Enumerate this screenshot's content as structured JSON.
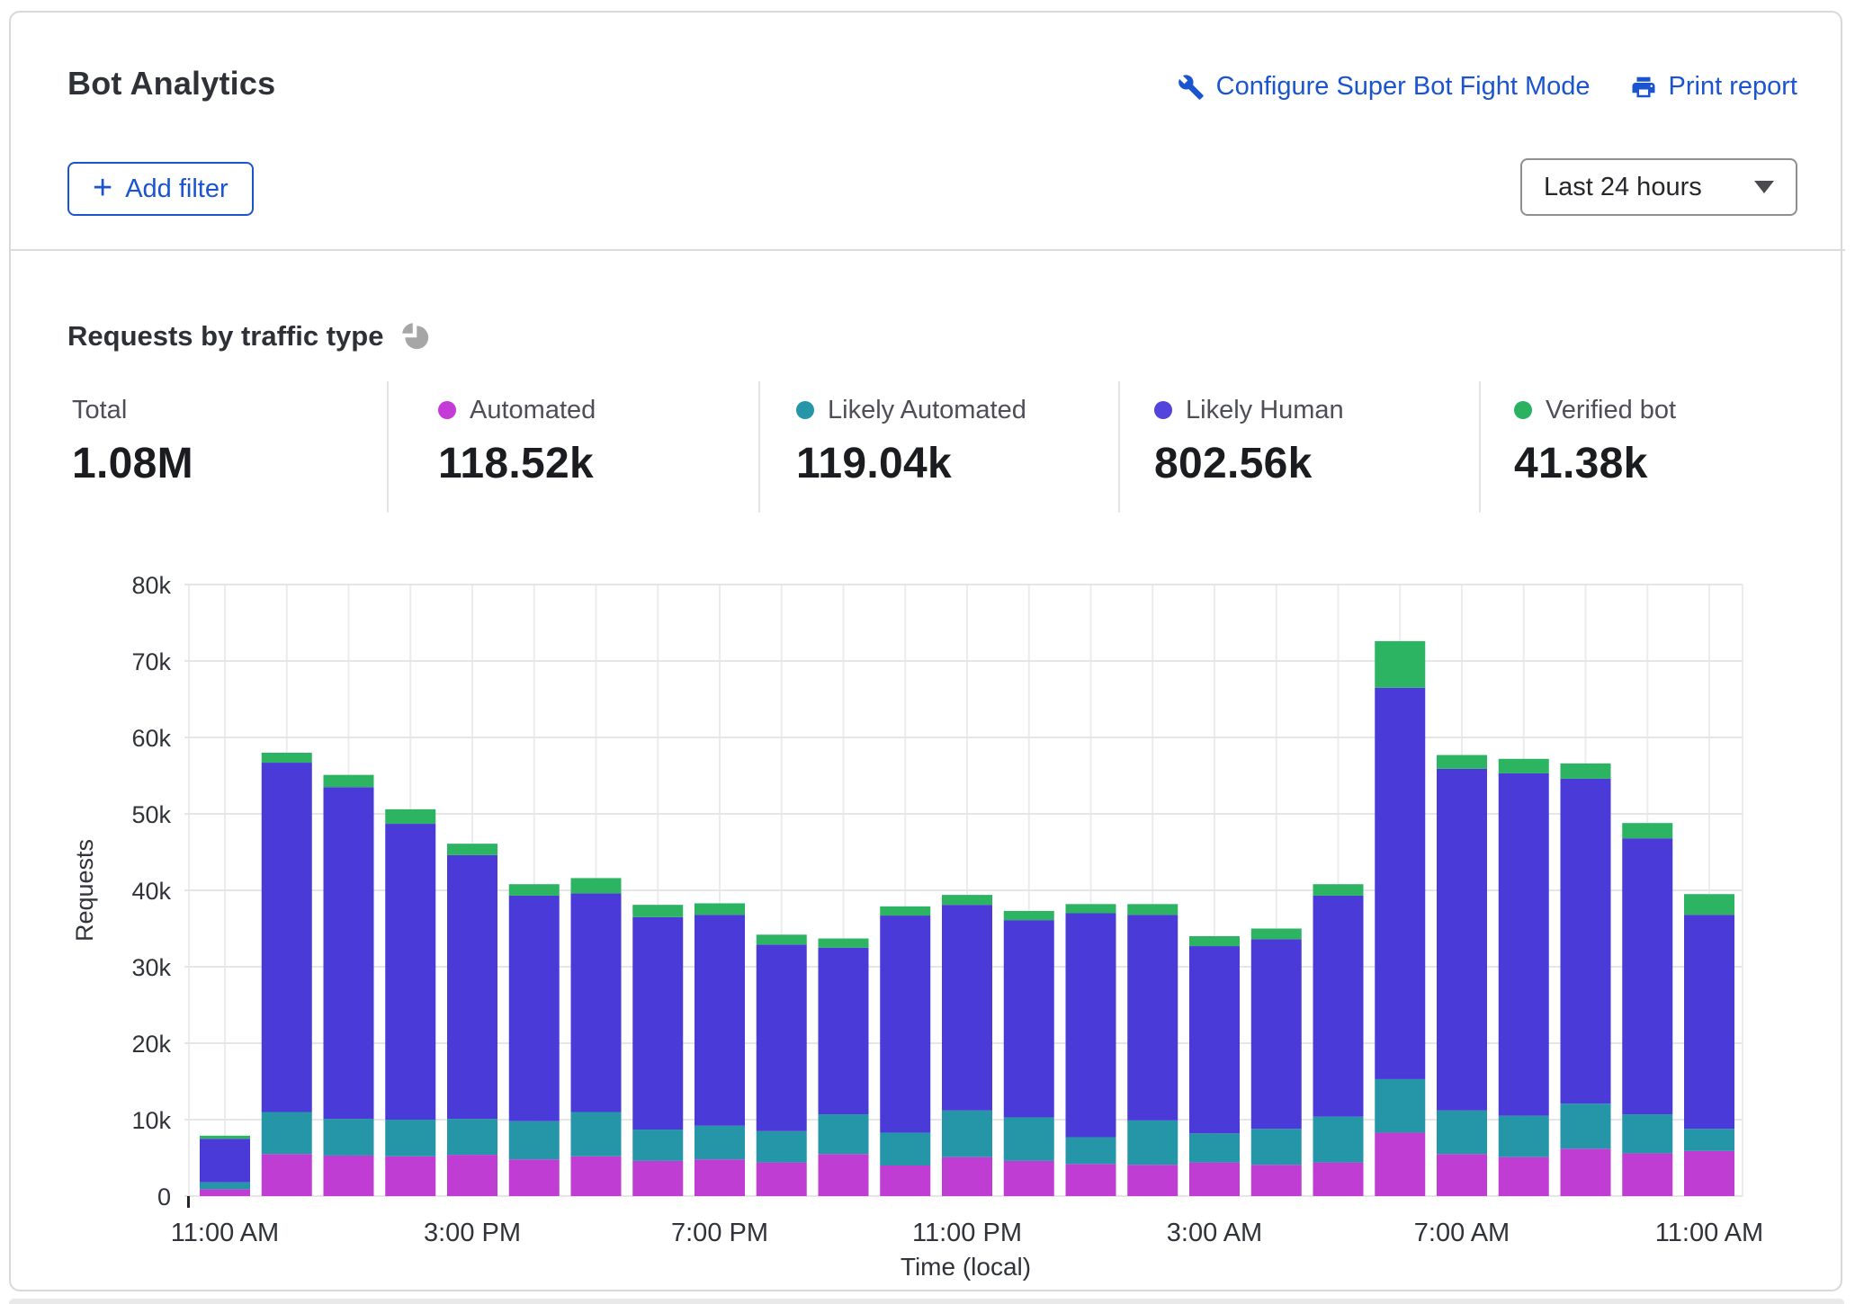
{
  "header": {
    "title": "Bot Analytics",
    "configure_link": "Configure Super Bot Fight Mode",
    "print_link": "Print report",
    "add_filter_label": "Add filter",
    "plus_icon": "+",
    "time_range_value": "Last 24 hours"
  },
  "section": {
    "title": "Requests by traffic type"
  },
  "stats": [
    {
      "label": "Total",
      "value": "1.08M",
      "color": null
    },
    {
      "label": "Automated",
      "value": "118.52k",
      "color": "#c43bd8"
    },
    {
      "label": "Likely Automated",
      "value": "119.04k",
      "color": "#2795a9"
    },
    {
      "label": "Likely Human",
      "value": "802.56k",
      "color": "#5244dd"
    },
    {
      "label": "Verified bot",
      "value": "41.38k",
      "color": "#2bb261"
    }
  ],
  "chart_data": {
    "type": "bar",
    "stacked": true,
    "title": "Requests by traffic type",
    "xlabel": "Time (local)",
    "ylabel": "Requests",
    "unit": "thousands of requests",
    "ylim": [
      0,
      80000
    ],
    "y_ticks": [
      "0",
      "10k",
      "20k",
      "30k",
      "40k",
      "50k",
      "60k",
      "70k",
      "80k"
    ],
    "x_ticks": [
      {
        "index": 0,
        "label": "11:00 AM"
      },
      {
        "index": 4,
        "label": "3:00 PM"
      },
      {
        "index": 8,
        "label": "7:00 PM"
      },
      {
        "index": 12,
        "label": "11:00 PM"
      },
      {
        "index": 16,
        "label": "3:00 AM"
      },
      {
        "index": 20,
        "label": "7:00 AM"
      },
      {
        "index": 24,
        "label": "11:00 AM"
      }
    ],
    "grid": true,
    "legend_position": "top-stats-row",
    "series": [
      {
        "name": "Automated",
        "color": "#c03dd4"
      },
      {
        "name": "Likely Automated",
        "color": "#2595a8"
      },
      {
        "name": "Likely Human",
        "color": "#4a3bd8"
      },
      {
        "name": "Verified bot",
        "color": "#2db463"
      }
    ],
    "bars": [
      {
        "time": "11:00 AM",
        "values": [
          0.9,
          0.9,
          5.7,
          0.4
        ]
      },
      {
        "time": "12:00 PM",
        "values": [
          5.5,
          5.5,
          45.7,
          1.3
        ]
      },
      {
        "time": "1:00 PM",
        "values": [
          5.3,
          4.8,
          43.4,
          1.6
        ]
      },
      {
        "time": "2:00 PM",
        "values": [
          5.2,
          4.8,
          38.7,
          1.9
        ]
      },
      {
        "time": "3:00 PM",
        "values": [
          5.4,
          4.7,
          34.5,
          1.5
        ]
      },
      {
        "time": "4:00 PM",
        "values": [
          4.8,
          5.0,
          29.5,
          1.5
        ]
      },
      {
        "time": "5:00 PM",
        "values": [
          5.2,
          5.8,
          28.6,
          2.0
        ]
      },
      {
        "time": "6:00 PM",
        "values": [
          4.6,
          4.1,
          27.8,
          1.6
        ]
      },
      {
        "time": "7:00 PM",
        "values": [
          4.8,
          4.4,
          27.6,
          1.5
        ]
      },
      {
        "time": "8:00 PM",
        "values": [
          4.4,
          4.1,
          24.4,
          1.3
        ]
      },
      {
        "time": "9:00 PM",
        "values": [
          5.5,
          5.2,
          21.8,
          1.2
        ]
      },
      {
        "time": "10:00 PM",
        "values": [
          4.0,
          4.3,
          28.4,
          1.2
        ]
      },
      {
        "time": "11:00 PM",
        "values": [
          5.1,
          6.1,
          26.9,
          1.3
        ]
      },
      {
        "time": "12:00 AM",
        "values": [
          4.6,
          5.7,
          25.8,
          1.2
        ]
      },
      {
        "time": "1:00 AM",
        "values": [
          4.2,
          3.5,
          29.3,
          1.2
        ]
      },
      {
        "time": "2:00 AM",
        "values": [
          4.1,
          5.8,
          26.9,
          1.4
        ]
      },
      {
        "time": "3:00 AM",
        "values": [
          4.4,
          3.8,
          24.5,
          1.3
        ]
      },
      {
        "time": "4:00 AM",
        "values": [
          4.1,
          4.7,
          24.8,
          1.4
        ]
      },
      {
        "time": "5:00 AM",
        "values": [
          4.4,
          6.0,
          28.9,
          1.5
        ]
      },
      {
        "time": "6:00 AM",
        "values": [
          8.3,
          7.0,
          51.2,
          6.1
        ]
      },
      {
        "time": "7:00 AM",
        "values": [
          5.5,
          5.7,
          44.7,
          1.8
        ]
      },
      {
        "time": "8:00 AM",
        "values": [
          5.1,
          5.4,
          44.8,
          1.9
        ]
      },
      {
        "time": "9:00 AM",
        "values": [
          6.2,
          5.9,
          42.5,
          2.0
        ]
      },
      {
        "time": "10:00 AM",
        "values": [
          5.6,
          5.1,
          36.1,
          2.0
        ]
      },
      {
        "time": "11:00 AM",
        "values": [
          5.9,
          2.9,
          28.0,
          2.7
        ]
      }
    ]
  }
}
